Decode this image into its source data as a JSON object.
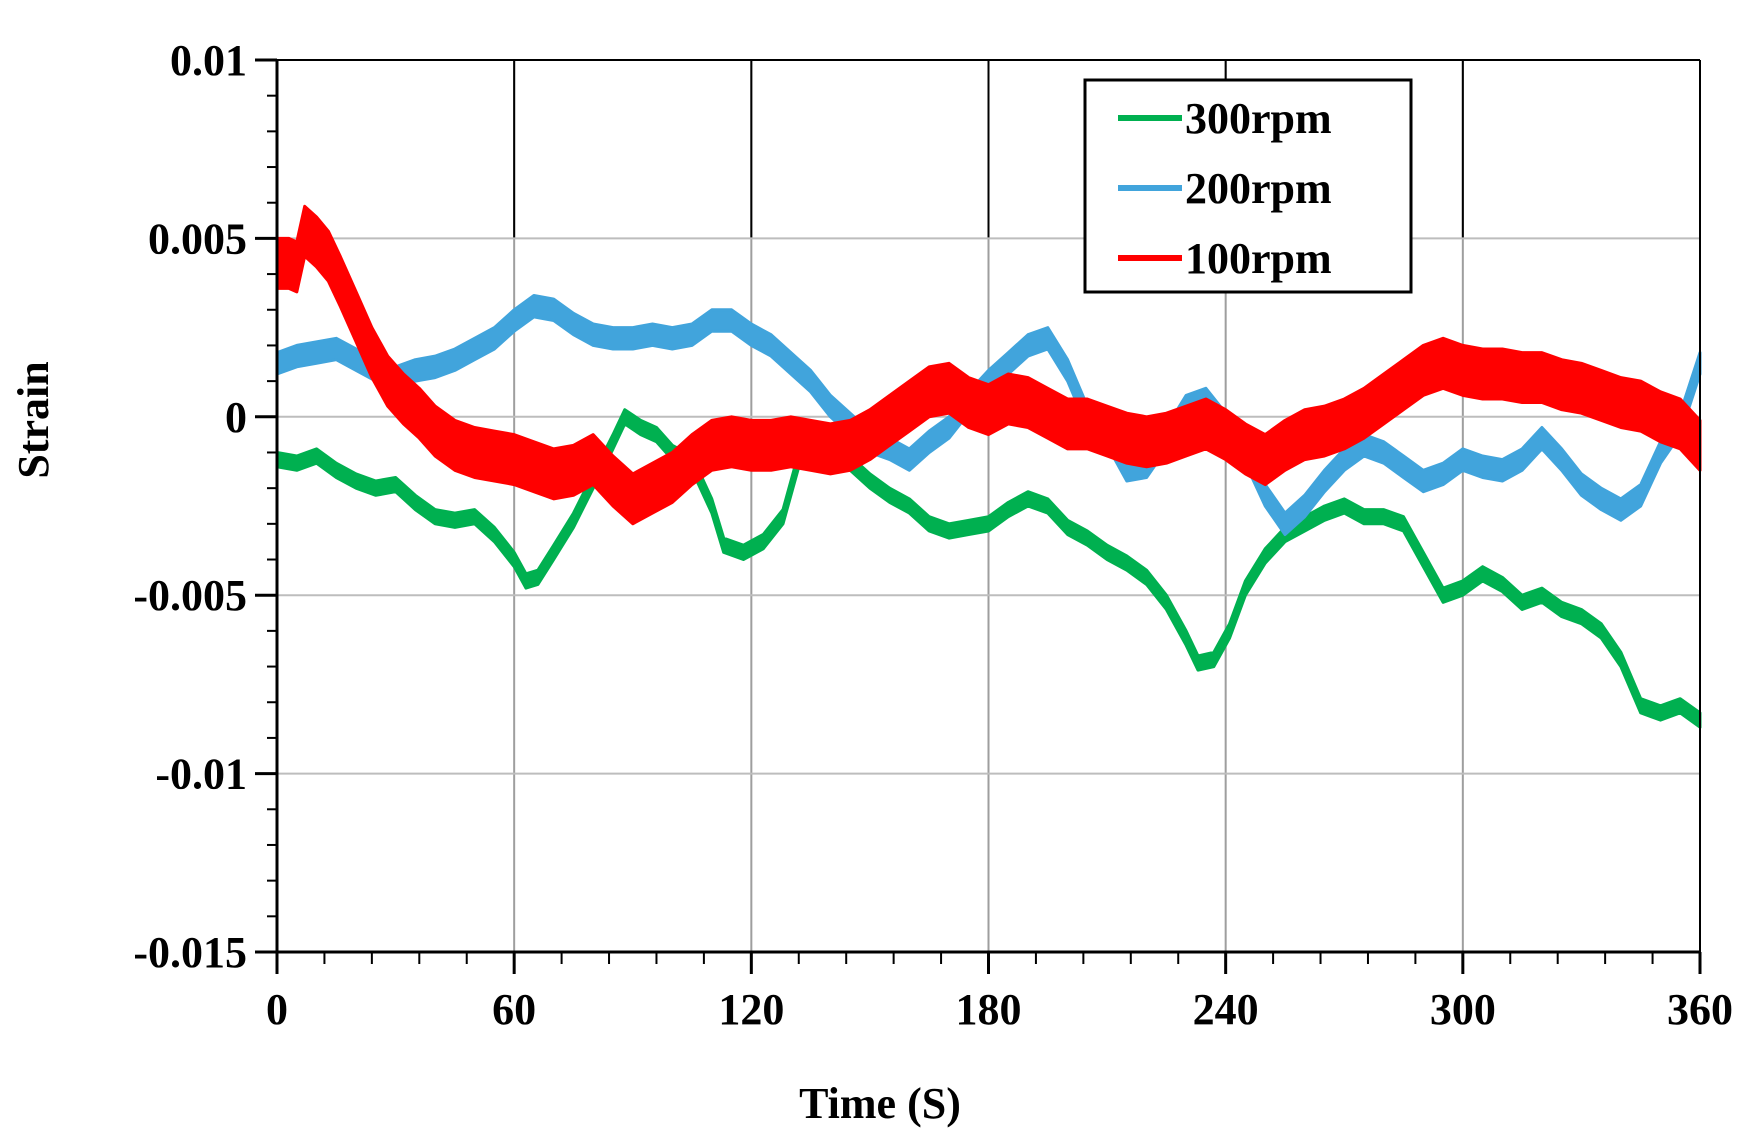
{
  "chart_data": {
    "type": "line",
    "title": "",
    "xlabel": "Time (S)",
    "ylabel": "Strain",
    "xlim": [
      0,
      360
    ],
    "ylim": [
      -0.015,
      0.01
    ],
    "x_ticks": [
      0,
      60,
      120,
      180,
      240,
      300,
      360
    ],
    "x_tick_labels": [
      "0",
      "60",
      "120",
      "180",
      "240",
      "300",
      "360"
    ],
    "y_ticks": [
      0.01,
      0.005,
      0,
      -0.005,
      -0.01,
      -0.015
    ],
    "y_tick_labels": [
      "0.01",
      "0.005",
      "0",
      "-0.005",
      "-0.01",
      "-0.015"
    ],
    "grid": true,
    "legend_position": "top-right",
    "series": [
      {
        "name": "300rpm",
        "color": "#00b050",
        "band": 0.0004,
        "x": [
          0,
          5,
          10,
          15,
          20,
          25,
          30,
          35,
          40,
          45,
          50,
          55,
          60,
          63,
          66,
          70,
          75,
          80,
          85,
          88,
          92,
          96,
          100,
          105,
          110,
          113,
          118,
          123,
          128,
          132,
          136,
          140,
          145,
          150,
          155,
          160,
          165,
          170,
          175,
          180,
          185,
          190,
          195,
          200,
          205,
          210,
          215,
          220,
          225,
          230,
          233,
          237,
          241,
          245,
          250,
          255,
          260,
          265,
          270,
          275,
          280,
          285,
          290,
          295,
          300,
          305,
          310,
          315,
          320,
          325,
          330,
          335,
          340,
          345,
          350,
          355,
          360
        ],
        "y": [
          -0.0012,
          -0.0013,
          -0.0011,
          -0.0015,
          -0.0018,
          -0.002,
          -0.0019,
          -0.0024,
          -0.0028,
          -0.0029,
          -0.0028,
          -0.0033,
          -0.004,
          -0.0046,
          -0.0045,
          -0.0038,
          -0.0029,
          -0.0018,
          -0.0007,
          0.0,
          -0.0003,
          -0.0005,
          -0.001,
          -0.0013,
          -0.0025,
          -0.0036,
          -0.0038,
          -0.0035,
          -0.0028,
          -0.0012,
          -0.0008,
          -0.0009,
          -0.0013,
          -0.0018,
          -0.0022,
          -0.0025,
          -0.003,
          -0.0032,
          -0.0031,
          -0.003,
          -0.0026,
          -0.0023,
          -0.0025,
          -0.0031,
          -0.0034,
          -0.0038,
          -0.0041,
          -0.0045,
          -0.0052,
          -0.0062,
          -0.0069,
          -0.0068,
          -0.006,
          -0.0048,
          -0.0039,
          -0.0033,
          -0.003,
          -0.0027,
          -0.0025,
          -0.0028,
          -0.0028,
          -0.003,
          -0.004,
          -0.005,
          -0.0048,
          -0.0044,
          -0.0047,
          -0.0052,
          -0.005,
          -0.0054,
          -0.0056,
          -0.006,
          -0.0068,
          -0.0081,
          -0.0083,
          -0.0081,
          -0.0085
        ]
      },
      {
        "name": "200rpm",
        "color": "#41a4dc",
        "band": 0.0006,
        "x": [
          0,
          5,
          10,
          15,
          20,
          25,
          30,
          35,
          40,
          45,
          50,
          55,
          60,
          65,
          70,
          75,
          80,
          85,
          90,
          95,
          100,
          105,
          110,
          115,
          120,
          125,
          130,
          135,
          140,
          145,
          150,
          155,
          160,
          165,
          170,
          175,
          180,
          185,
          190,
          195,
          200,
          205,
          210,
          215,
          220,
          225,
          230,
          235,
          240,
          245,
          250,
          255,
          260,
          265,
          270,
          275,
          280,
          285,
          290,
          295,
          300,
          305,
          310,
          315,
          320,
          325,
          330,
          335,
          340,
          345,
          350,
          355,
          360
        ],
        "y": [
          0.0015,
          0.0017,
          0.0018,
          0.0019,
          0.0016,
          0.0013,
          0.0011,
          0.0013,
          0.0014,
          0.0016,
          0.0019,
          0.0022,
          0.0027,
          0.0031,
          0.003,
          0.0026,
          0.0023,
          0.0022,
          0.0022,
          0.0023,
          0.0022,
          0.0023,
          0.0027,
          0.0027,
          0.0023,
          0.002,
          0.0015,
          0.001,
          0.0003,
          -0.0002,
          -0.0007,
          -0.0009,
          -0.0012,
          -0.0007,
          -0.0003,
          0.0004,
          0.001,
          0.0015,
          0.002,
          0.0022,
          0.0013,
          0.0,
          -0.0005,
          -0.0015,
          -0.0014,
          -0.0006,
          0.0003,
          0.0005,
          -0.0002,
          -0.001,
          -0.0022,
          -0.003,
          -0.0025,
          -0.0018,
          -0.0012,
          -0.0008,
          -0.001,
          -0.0014,
          -0.0018,
          -0.0016,
          -0.0012,
          -0.0014,
          -0.0015,
          -0.0012,
          -0.0006,
          -0.0012,
          -0.0019,
          -0.0023,
          -0.0026,
          -0.0022,
          -0.001,
          -0.0002,
          0.0015
        ]
      },
      {
        "name": "100rpm",
        "color": "#ff0000",
        "band": 0.0014,
        "x": [
          0,
          3,
          5,
          7,
          10,
          13,
          16,
          20,
          24,
          28,
          32,
          36,
          40,
          45,
          50,
          55,
          60,
          65,
          70,
          75,
          80,
          85,
          90,
          95,
          100,
          105,
          110,
          115,
          120,
          125,
          130,
          135,
          140,
          145,
          150,
          155,
          160,
          165,
          170,
          175,
          180,
          185,
          190,
          195,
          200,
          205,
          210,
          215,
          220,
          225,
          230,
          235,
          240,
          245,
          250,
          255,
          260,
          265,
          270,
          275,
          280,
          285,
          290,
          295,
          300,
          305,
          310,
          315,
          320,
          325,
          330,
          335,
          340,
          345,
          350,
          355,
          360
        ],
        "y": [
          0.0043,
          0.0043,
          0.0042,
          0.0052,
          0.0049,
          0.0045,
          0.0038,
          0.0028,
          0.0018,
          0.001,
          0.0005,
          0.0001,
          -0.0004,
          -0.0008,
          -0.001,
          -0.0011,
          -0.0012,
          -0.0014,
          -0.0016,
          -0.0015,
          -0.0012,
          -0.0018,
          -0.0023,
          -0.002,
          -0.0017,
          -0.0012,
          -0.0008,
          -0.0007,
          -0.0008,
          -0.0008,
          -0.0007,
          -0.0008,
          -0.0009,
          -0.0008,
          -0.0005,
          -0.0001,
          0.0003,
          0.0007,
          0.0008,
          0.0004,
          0.0002,
          0.0005,
          0.0004,
          0.0001,
          -0.0002,
          -0.0002,
          -0.0004,
          -0.0006,
          -0.0007,
          -0.0006,
          -0.0004,
          -0.0002,
          -0.0005,
          -0.0009,
          -0.0012,
          -0.0008,
          -0.0005,
          -0.0004,
          -0.0002,
          0.0001,
          0.0005,
          0.0009,
          0.0013,
          0.0015,
          0.0013,
          0.0012,
          0.0012,
          0.0011,
          0.0011,
          0.0009,
          0.0008,
          0.0006,
          0.0004,
          0.0003,
          0.0,
          -0.0002,
          -0.0008
        ]
      }
    ]
  }
}
